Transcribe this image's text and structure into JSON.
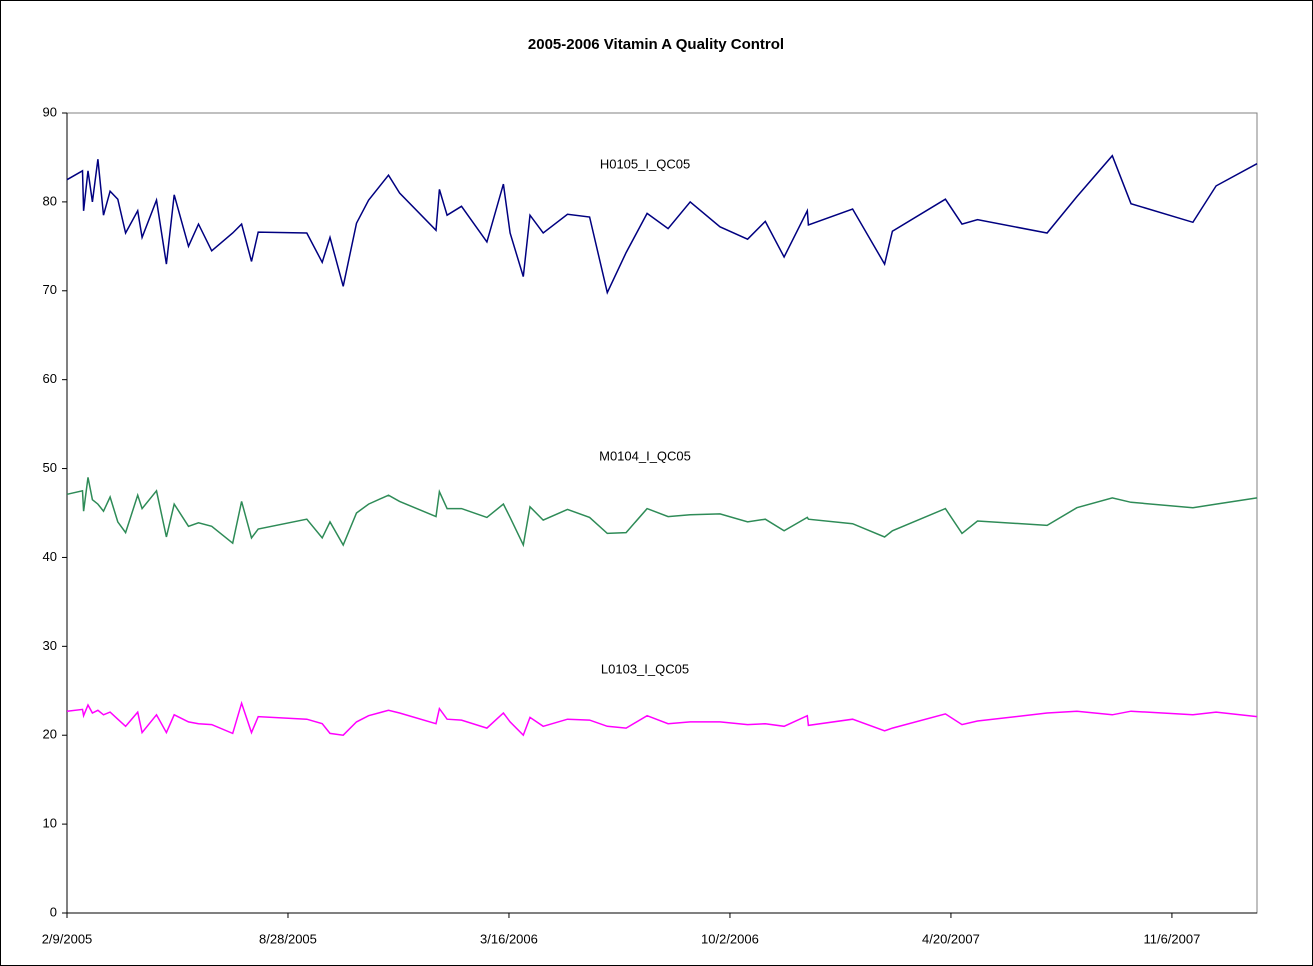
{
  "chart_data": {
    "type": "line",
    "title": "2005-2006 Vitamin A Quality Control",
    "x": [
      "2/9/2005",
      "2/23/2005",
      "2/24/2005",
      "2/28/2005",
      "3/4/2005",
      "3/9/2005",
      "3/14/2005",
      "3/20/2005",
      "3/27/2005",
      "4/3/2005",
      "4/14/2005",
      "4/18/2005",
      "5/1/2005",
      "5/10/2005",
      "5/17/2005",
      "5/30/2005",
      "6/8/2005",
      "6/20/2005",
      "7/9/2005",
      "7/17/2005",
      "7/26/2005",
      "8/1/2005",
      "9/14/2005",
      "9/28/2005",
      "10/5/2005",
      "10/17/2005",
      "10/29/2005",
      "11/9/2005",
      "11/27/2005",
      "12/7/2005",
      "1/9/2006",
      "1/12/2006",
      "1/19/2006",
      "2/1/2006",
      "2/24/2006",
      "3/11/2006",
      "3/17/2006",
      "3/29/2006",
      "4/4/2006",
      "4/16/2006",
      "5/8/2006",
      "5/28/2006",
      "6/13/2006",
      "6/30/2006",
      "7/19/2006",
      "8/7/2006",
      "8/27/2006",
      "9/23/2006",
      "10/18/2006",
      "11/3/2006",
      "11/20/2006",
      "12/11/2006",
      "12/12/2006",
      "1/21/2007",
      "2/19/2007",
      "2/26/2007",
      "4/15/2007",
      "4/30/2007",
      "5/14/2007",
      "7/16/2007",
      "8/12/2007",
      "9/13/2007",
      "9/30/2007",
      "11/25/2007",
      "12/16/2007",
      "1/22/2008"
    ],
    "series": [
      {
        "name": "H0105_I_QC05",
        "color": "#000080",
        "values": [
          82.5,
          83.5,
          79,
          83.5,
          80,
          84.8,
          78.5,
          81.2,
          80.3,
          76.5,
          79,
          76,
          80.2,
          73,
          80.8,
          75,
          77.5,
          74.5,
          76.5,
          77.5,
          73.3,
          76.6,
          76.5,
          73.2,
          76,
          70.5,
          77.6,
          80.2,
          83,
          81,
          76.8,
          81.4,
          78.5,
          79.5,
          75.5,
          82,
          76.5,
          71.6,
          78.5,
          76.5,
          78.6,
          78.3,
          69.8,
          74.3,
          78.7,
          77,
          80,
          77.2,
          75.8,
          77.8,
          73.8,
          79,
          77.4,
          79.2,
          73,
          76.7,
          80.3,
          77.5,
          78,
          76.5,
          80.6,
          85.2,
          79.8,
          77.7,
          81.8,
          84.3
        ]
      },
      {
        "name": "M0104_I_QC05",
        "color": "#2e8b57",
        "values": [
          47.1,
          47.5,
          45.2,
          49,
          46.5,
          46,
          45.2,
          46.8,
          44,
          42.8,
          47,
          45.5,
          47.5,
          42.3,
          46,
          43.5,
          43.9,
          43.5,
          41.6,
          46.3,
          42.2,
          43.2,
          44.3,
          42.2,
          44,
          41.4,
          45,
          46,
          47,
          46.3,
          44.6,
          47.4,
          45.5,
          45.5,
          44.5,
          46,
          44.5,
          41.4,
          45.7,
          44.2,
          45.4,
          44.5,
          42.7,
          42.8,
          45.5,
          44.6,
          44.8,
          44.9,
          44,
          44.3,
          43,
          44.5,
          44.3,
          43.8,
          42.3,
          43,
          45.5,
          42.7,
          44.1,
          43.6,
          45.6,
          46.7,
          46.2,
          45.6,
          46,
          46.7
        ]
      },
      {
        "name": "L0103_I_QC05",
        "color": "#ff00ff",
        "values": [
          22.7,
          22.9,
          22.2,
          23.4,
          22.5,
          22.8,
          22.3,
          22.6,
          21.8,
          21,
          22.6,
          20.3,
          22.3,
          20.3,
          22.3,
          21.5,
          21.3,
          21.2,
          20.2,
          23.6,
          20.3,
          22.1,
          21.8,
          21.3,
          20.2,
          20,
          21.5,
          22.2,
          22.8,
          22.5,
          21.3,
          23,
          21.8,
          21.7,
          20.8,
          22.5,
          21.5,
          20,
          22,
          21,
          21.8,
          21.7,
          21,
          20.8,
          22.2,
          21.3,
          21.5,
          21.5,
          21.2,
          21.3,
          21,
          22.2,
          21.1,
          21.8,
          20.5,
          20.8,
          22.4,
          21.2,
          21.6,
          22.5,
          22.7,
          22.3,
          22.7,
          22.3,
          22.6,
          22.1
        ]
      }
    ],
    "xlim": [
      "2/9/2005",
      "1/22/2008"
    ],
    "xticks": [
      "2/9/2005",
      "8/28/2005",
      "3/16/2006",
      "10/2/2006",
      "4/20/2007",
      "11/6/2007"
    ],
    "ylim": [
      0,
      90
    ],
    "yticks": [
      0,
      10,
      20,
      30,
      40,
      50,
      60,
      70,
      80,
      90
    ],
    "grid": false
  }
}
